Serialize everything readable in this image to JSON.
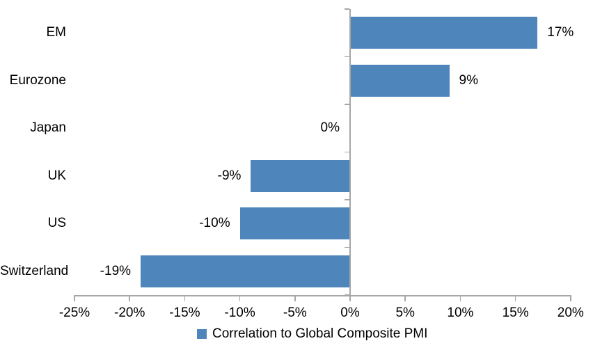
{
  "chart_data": {
    "type": "bar",
    "orientation": "horizontal",
    "title": "",
    "categories": [
      "EM",
      "Eurozone",
      "Japan",
      "UK",
      "US",
      "Switzerland"
    ],
    "values": [
      17,
      9,
      0,
      -9,
      -10,
      -19
    ],
    "value_labels": [
      "17%",
      "9%",
      "0%",
      "-9%",
      "-10%",
      "-19%"
    ],
    "series": [
      {
        "name": "Correlation to Global Composite PMI",
        "values": [
          17,
          9,
          0,
          -9,
          -10,
          -19
        ]
      }
    ],
    "x_axis": {
      "min": -25,
      "max": 20,
      "tick_step": 5,
      "ticks": [
        -25,
        -20,
        -15,
        -10,
        -5,
        0,
        5,
        10,
        15,
        20
      ],
      "tick_labels": [
        "-25%",
        "-20%",
        "-15%",
        "-10%",
        "-5%",
        "0%",
        "5%",
        "10%",
        "15%",
        "20%"
      ]
    },
    "legend": {
      "label": "Correlation to Global Composite PMI",
      "position": "bottom",
      "swatch_icon": "legend-swatch-square"
    },
    "grid": false,
    "colors": {
      "bar": "#4E86BC",
      "axis": "#A6A6A6",
      "text": "#000000",
      "background": "#FFFFFF"
    }
  }
}
